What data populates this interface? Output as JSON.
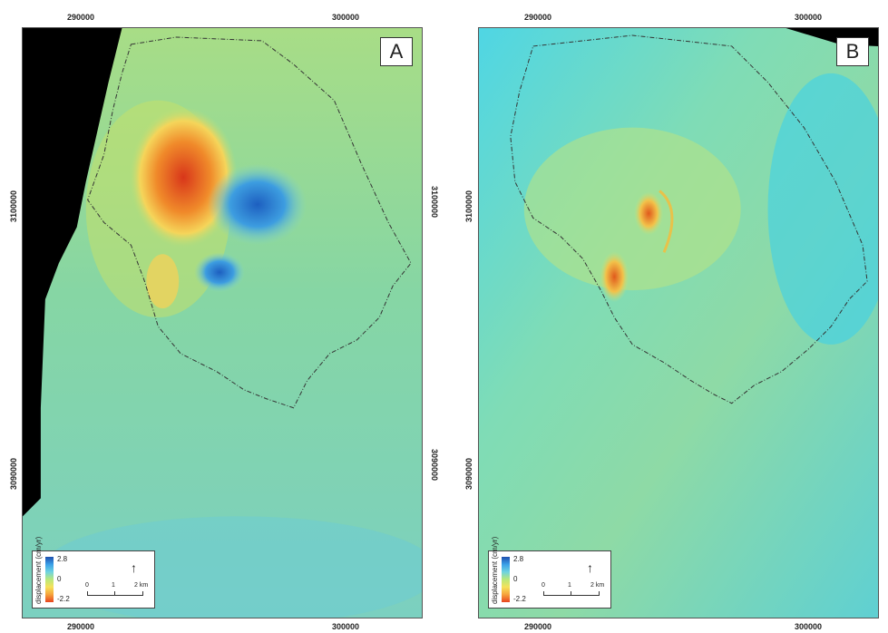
{
  "panels": [
    {
      "letter": "A",
      "ticks": {
        "top_x": "290000",
        "top_x2": "300000",
        "bottom_x": "290000",
        "bottom_x2": "300000",
        "left_y": "3100000",
        "left_y2": "3090000",
        "right_y": "3100000",
        "right_y2": "3090000"
      },
      "legend": {
        "title": "displacement (cm/yr)",
        "max": "2.8",
        "mid": "0",
        "min": "-2.2",
        "scale_0": "0",
        "scale_1": "1",
        "scale_2": "2 km"
      }
    },
    {
      "letter": "B",
      "ticks": {
        "top_x": "290000",
        "top_x2": "300000",
        "bottom_x": "290000",
        "bottom_x2": "300000",
        "left_y": "3100000",
        "left_y2": "3090000"
      },
      "legend": {
        "title": "displacement (cm/yr)",
        "max": "2.8",
        "mid": "0",
        "min": "-2.2",
        "scale_0": "0",
        "scale_1": "1",
        "scale_2": "2 km"
      }
    }
  ],
  "colors": {
    "background_field": "#8fd8a0",
    "positive": "#1f5fc2",
    "negative": "#e14a1a",
    "nodata": "#000000"
  }
}
